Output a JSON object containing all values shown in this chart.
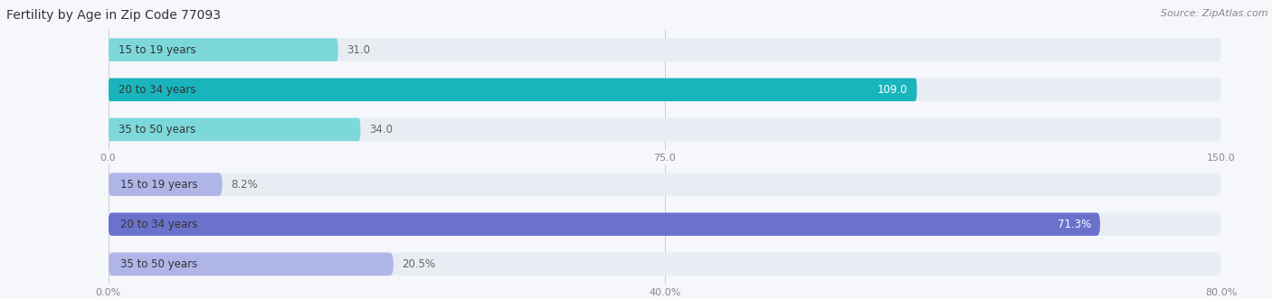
{
  "title": "Fertility by Age in Zip Code 77093",
  "source": "Source: ZipAtlas.com",
  "top_chart": {
    "categories": [
      "15 to 19 years",
      "20 to 34 years",
      "35 to 50 years"
    ],
    "values": [
      31.0,
      109.0,
      34.0
    ],
    "xlim": [
      0,
      150
    ],
    "xticks": [
      0.0,
      75.0,
      150.0
    ],
    "xtick_labels": [
      "0.0",
      "75.0",
      "150.0"
    ],
    "bar_color_light": "#7dd8da",
    "bar_color_dark": "#1ab5bc",
    "bg_color": "#e8edf4"
  },
  "bottom_chart": {
    "categories": [
      "15 to 19 years",
      "20 to 34 years",
      "35 to 50 years"
    ],
    "values": [
      8.2,
      71.3,
      20.5
    ],
    "xlim": [
      0,
      80
    ],
    "xticks": [
      0.0,
      40.0,
      80.0
    ],
    "xtick_labels": [
      "0.0%",
      "40.0%",
      "80.0%"
    ],
    "bar_color_light": "#b0b5e8",
    "bar_color_dark": "#6b72cc",
    "bg_color": "#e8edf4"
  },
  "figure_bg": "#f5f7fb",
  "bar_height": 0.58,
  "label_fontsize": 8.5,
  "tick_fontsize": 8,
  "title_fontsize": 10,
  "source_fontsize": 8,
  "category_fontsize": 8.5
}
